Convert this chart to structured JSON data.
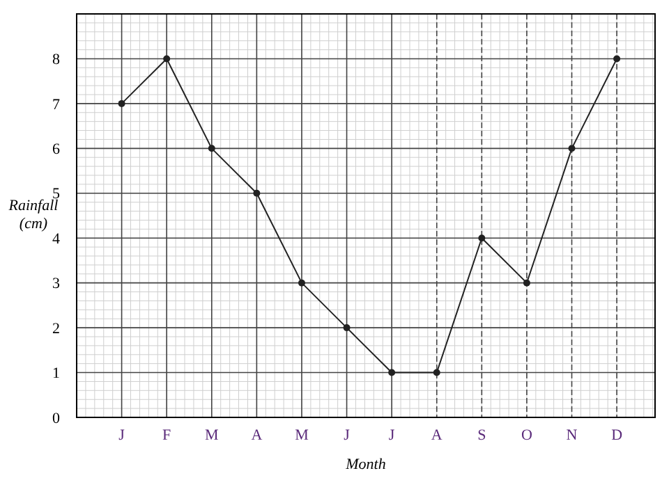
{
  "chart_data": {
    "type": "line",
    "xlabel": "Month",
    "ylabel": "Rainfall\n(cm)",
    "categories": [
      "J",
      "F",
      "M",
      "A",
      "M",
      "J",
      "J",
      "A",
      "S",
      "O",
      "N",
      "D"
    ],
    "values": [
      7,
      8,
      6,
      5,
      3,
      2,
      1,
      1,
      4,
      3,
      6,
      8
    ],
    "color": "#222222",
    "ylim": [
      0,
      9
    ],
    "yticks": [
      0,
      1,
      2,
      3,
      4,
      5,
      6,
      7,
      8
    ],
    "grid": true,
    "marker": "circle",
    "line_style": "solid"
  }
}
